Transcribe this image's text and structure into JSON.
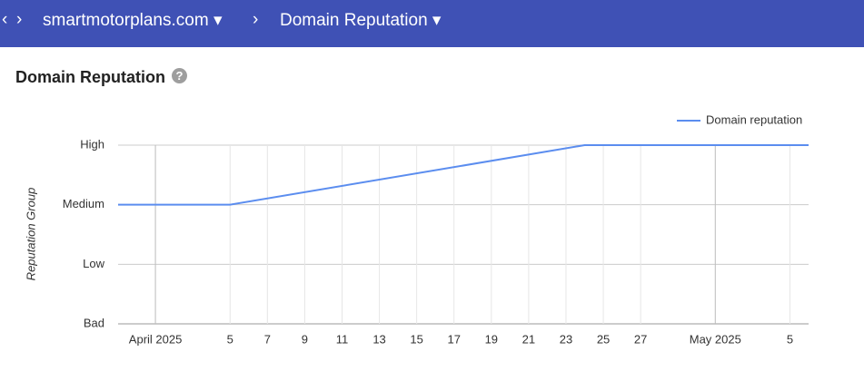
{
  "header": {
    "crumbs": [
      "smartmotorplans.com",
      "Domain Reputation"
    ]
  },
  "page_title": "Domain Reputation",
  "chart_data": {
    "type": "line",
    "y_label": "Reputation Group",
    "x": [
      "2025-03-30",
      "2025-04-05",
      "2025-04-24",
      "2025-05-06"
    ],
    "series": [
      {
        "name": "Domain reputation",
        "color": "#5b8def",
        "values": [
          2,
          2,
          3,
          3
        ]
      }
    ],
    "xlim": [
      "2025-03-30",
      "2025-05-06"
    ],
    "xticks": [
      {
        "value": "2025-04-01",
        "label": "April 2025"
      },
      {
        "value": "2025-04-05",
        "label": "5"
      },
      {
        "value": "2025-04-07",
        "label": "7"
      },
      {
        "value": "2025-04-09",
        "label": "9"
      },
      {
        "value": "2025-04-11",
        "label": "11"
      },
      {
        "value": "2025-04-13",
        "label": "13"
      },
      {
        "value": "2025-04-15",
        "label": "15"
      },
      {
        "value": "2025-04-17",
        "label": "17"
      },
      {
        "value": "2025-04-19",
        "label": "19"
      },
      {
        "value": "2025-04-21",
        "label": "21"
      },
      {
        "value": "2025-04-23",
        "label": "23"
      },
      {
        "value": "2025-04-25",
        "label": "25"
      },
      {
        "value": "2025-04-27",
        "label": "27"
      },
      {
        "value": "2025-05-01",
        "label": "May 2025"
      },
      {
        "value": "2025-05-05",
        "label": "5"
      }
    ],
    "ylim": [
      0,
      3
    ],
    "yticks": [
      {
        "value": 0,
        "label": "Bad"
      },
      {
        "value": 1,
        "label": "Low"
      },
      {
        "value": 2,
        "label": "Medium"
      },
      {
        "value": 3,
        "label": "High"
      }
    ],
    "grid": true,
    "legend": "top-right"
  }
}
